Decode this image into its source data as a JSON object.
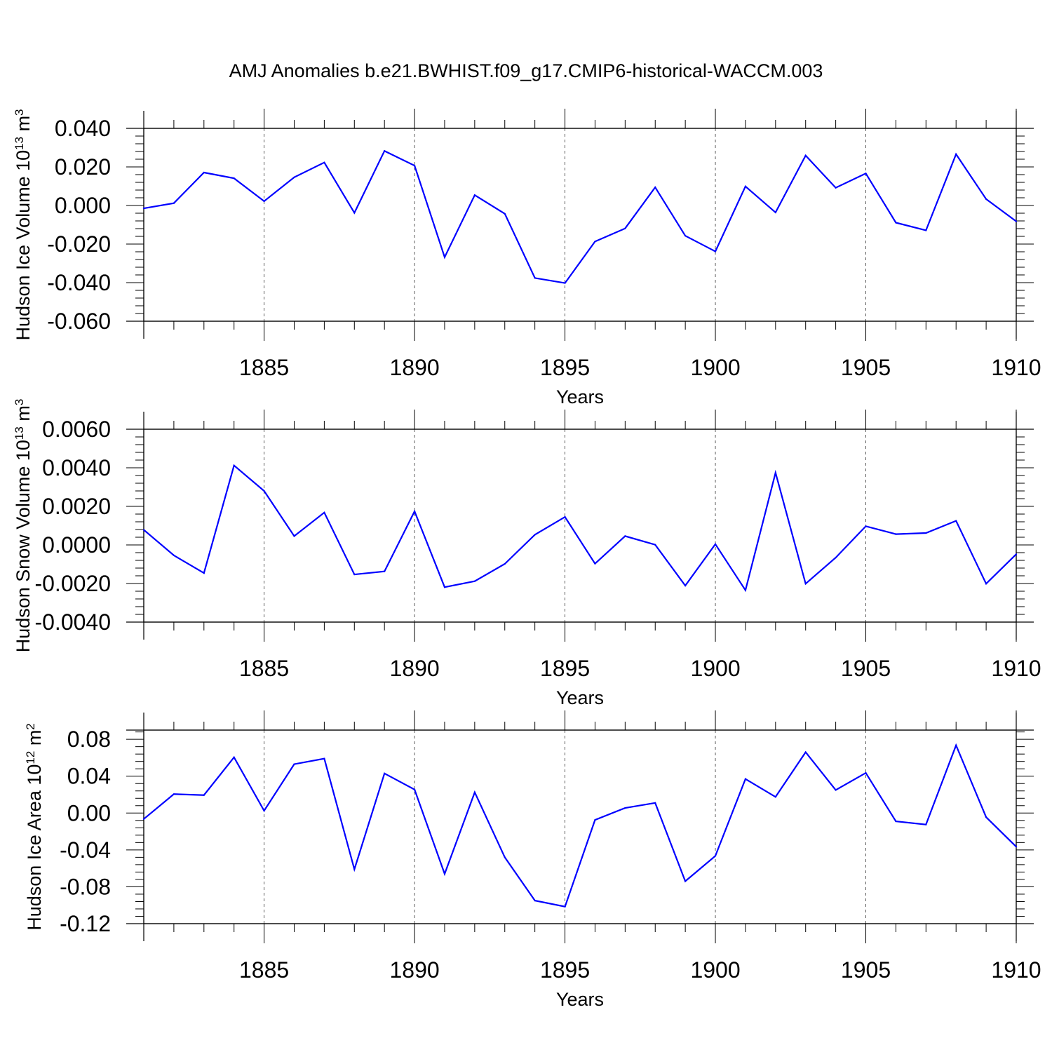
{
  "title": "AMJ Anomalies b.e21.BWHIST.f09_g17.CMIP6-historical-WACCM.003",
  "line_color": "#0000ff",
  "chart_data": [
    {
      "type": "line",
      "title": "",
      "xlabel": "Years",
      "ylabel": "Hudson Ice Volume 10",
      "ylabel_sup": "13",
      "ylabel_unit": "m",
      "ylabel_unit_sup": "3",
      "xlim": [
        1881,
        1910
      ],
      "ylim": [
        -0.06,
        0.04
      ],
      "x_ticks": [
        1885,
        1890,
        1895,
        1900,
        1905,
        1910
      ],
      "y_ticks": [
        "-0.060",
        "-0.040",
        "-0.020",
        "0.000",
        "0.020",
        "0.040"
      ],
      "y_tick_values": [
        -0.06,
        -0.04,
        -0.02,
        0.0,
        0.02,
        0.04
      ],
      "grid_x": true,
      "x": [
        1881,
        1882,
        1883,
        1884,
        1885,
        1886,
        1887,
        1888,
        1889,
        1890,
        1891,
        1892,
        1893,
        1894,
        1895,
        1896,
        1897,
        1898,
        1899,
        1900,
        1901,
        1902,
        1903,
        1904,
        1905,
        1906,
        1907,
        1908,
        1909,
        1910
      ],
      "values": [
        -0.0015,
        0.0012,
        0.0171,
        0.0141,
        0.0022,
        0.0146,
        0.0223,
        -0.0038,
        0.0283,
        0.0207,
        -0.0268,
        0.0054,
        -0.0043,
        -0.0376,
        -0.0402,
        -0.0187,
        -0.0119,
        0.0094,
        -0.0157,
        -0.0238,
        0.0099,
        -0.0036,
        0.0259,
        0.0092,
        0.0166,
        -0.0089,
        -0.0129,
        0.0266,
        0.0033,
        -0.0082
      ]
    },
    {
      "type": "line",
      "title": "",
      "xlabel": "Years",
      "ylabel": "Hudson Snow Volume 10",
      "ylabel_sup": "13",
      "ylabel_unit": "m",
      "ylabel_unit_sup": "3",
      "xlim": [
        1881,
        1910
      ],
      "ylim": [
        -0.004,
        0.006
      ],
      "x_ticks": [
        1885,
        1890,
        1895,
        1900,
        1905,
        1910
      ],
      "y_ticks": [
        "-0.0040",
        "-0.0020",
        "0.0000",
        "0.0020",
        "0.0040",
        "0.0060"
      ],
      "y_tick_values": [
        -0.004,
        -0.002,
        0.0,
        0.002,
        0.004,
        0.006
      ],
      "grid_x": true,
      "x": [
        1881,
        1882,
        1883,
        1884,
        1885,
        1886,
        1887,
        1888,
        1889,
        1890,
        1891,
        1892,
        1893,
        1894,
        1895,
        1896,
        1897,
        1898,
        1899,
        1900,
        1901,
        1902,
        1903,
        1904,
        1905,
        1906,
        1907,
        1908,
        1909,
        1910
      ],
      "values": [
        0.00078,
        -0.00054,
        -0.00146,
        0.00412,
        0.0028,
        0.00046,
        0.00168,
        -0.00153,
        -0.00137,
        0.00174,
        -0.00219,
        -0.00188,
        -0.00098,
        0.00053,
        0.00145,
        -0.00097,
        0.00046,
        1e-05,
        -0.00211,
        4e-05,
        -0.00235,
        0.00374,
        -0.00201,
        -0.00066,
        0.00097,
        0.00056,
        0.00062,
        0.00125,
        -0.00201,
        -0.00048
      ]
    },
    {
      "type": "line",
      "title": "",
      "xlabel": "Years",
      "ylabel": "Hudson Ice Area 10",
      "ylabel_sup": "12",
      "ylabel_unit": "m",
      "ylabel_unit_sup": "2",
      "xlim": [
        1881,
        1910
      ],
      "ylim": [
        -0.12,
        0.09
      ],
      "x_ticks": [
        1885,
        1890,
        1895,
        1900,
        1905,
        1910
      ],
      "y_ticks": [
        "-0.12",
        "-0.08",
        "-0.04",
        "0.00",
        "0.04",
        "0.08"
      ],
      "y_tick_values": [
        -0.12,
        -0.08,
        -0.04,
        0.0,
        0.04,
        0.08
      ],
      "grid_x": true,
      "x": [
        1881,
        1882,
        1883,
        1884,
        1885,
        1886,
        1887,
        1888,
        1889,
        1890,
        1891,
        1892,
        1893,
        1894,
        1895,
        1896,
        1897,
        1898,
        1899,
        1900,
        1901,
        1902,
        1903,
        1904,
        1905,
        1906,
        1907,
        1908,
        1909,
        1910
      ],
      "values": [
        -0.0065,
        0.0205,
        0.0195,
        0.0605,
        0.0025,
        0.053,
        0.059,
        -0.061,
        0.043,
        0.0255,
        -0.066,
        0.0225,
        -0.048,
        -0.095,
        -0.1015,
        -0.0075,
        0.0055,
        0.011,
        -0.074,
        -0.0465,
        0.037,
        0.0175,
        0.066,
        0.025,
        0.0435,
        -0.009,
        -0.0125,
        0.0735,
        -0.0045,
        -0.0365
      ]
    }
  ]
}
